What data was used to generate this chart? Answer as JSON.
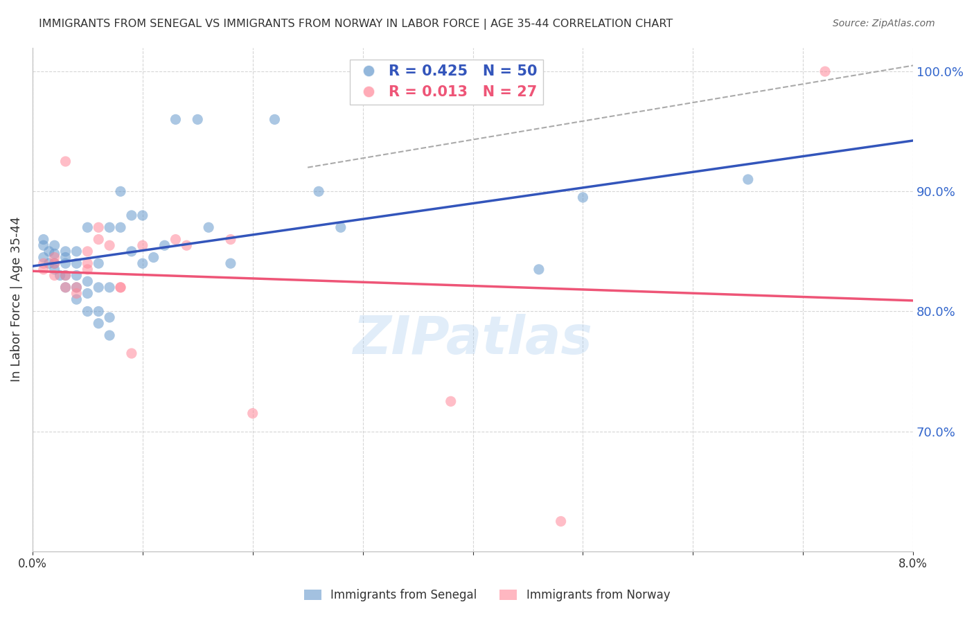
{
  "title": "IMMIGRANTS FROM SENEGAL VS IMMIGRANTS FROM NORWAY IN LABOR FORCE | AGE 35-44 CORRELATION CHART",
  "source": "Source: ZipAtlas.com",
  "ylabel": "In Labor Force | Age 35-44",
  "xmin": 0.0,
  "xmax": 0.08,
  "ymin": 0.6,
  "ymax": 1.02,
  "yticks": [
    0.7,
    0.8,
    0.9,
    1.0
  ],
  "ytick_labels": [
    "70.0%",
    "80.0%",
    "90.0%",
    "100.0%"
  ],
  "legend_R_blue": "R = 0.425",
  "legend_N_blue": "N = 50",
  "legend_R_pink": "R = 0.013",
  "legend_N_pink": "N = 27",
  "legend_label_blue": "Immigrants from Senegal",
  "legend_label_pink": "Immigrants from Norway",
  "blue_color": "#6699CC",
  "pink_color": "#FF8899",
  "trend_blue_color": "#3355BB",
  "trend_pink_color": "#EE5577",
  "blue_scatter_x": [
    0.001,
    0.001,
    0.001,
    0.0015,
    0.0015,
    0.002,
    0.002,
    0.002,
    0.002,
    0.0025,
    0.003,
    0.003,
    0.003,
    0.003,
    0.003,
    0.004,
    0.004,
    0.004,
    0.004,
    0.004,
    0.005,
    0.005,
    0.005,
    0.005,
    0.006,
    0.006,
    0.006,
    0.006,
    0.007,
    0.007,
    0.007,
    0.007,
    0.008,
    0.008,
    0.009,
    0.009,
    0.01,
    0.01,
    0.011,
    0.012,
    0.013,
    0.015,
    0.016,
    0.018,
    0.022,
    0.026,
    0.028,
    0.046,
    0.05,
    0.065
  ],
  "blue_scatter_y": [
    0.845,
    0.855,
    0.86,
    0.84,
    0.85,
    0.835,
    0.84,
    0.848,
    0.855,
    0.83,
    0.82,
    0.83,
    0.84,
    0.845,
    0.85,
    0.81,
    0.82,
    0.83,
    0.84,
    0.85,
    0.8,
    0.815,
    0.825,
    0.87,
    0.79,
    0.8,
    0.82,
    0.84,
    0.78,
    0.795,
    0.82,
    0.87,
    0.87,
    0.9,
    0.85,
    0.88,
    0.84,
    0.88,
    0.845,
    0.855,
    0.96,
    0.96,
    0.87,
    0.84,
    0.96,
    0.9,
    0.87,
    0.835,
    0.895,
    0.91
  ],
  "pink_scatter_x": [
    0.001,
    0.001,
    0.002,
    0.002,
    0.002,
    0.003,
    0.003,
    0.003,
    0.004,
    0.004,
    0.005,
    0.005,
    0.005,
    0.006,
    0.006,
    0.007,
    0.008,
    0.008,
    0.009,
    0.01,
    0.013,
    0.014,
    0.018,
    0.02,
    0.038,
    0.048,
    0.072
  ],
  "pink_scatter_y": [
    0.835,
    0.84,
    0.83,
    0.84,
    0.845,
    0.82,
    0.83,
    0.925,
    0.815,
    0.82,
    0.835,
    0.84,
    0.85,
    0.86,
    0.87,
    0.855,
    0.82,
    0.82,
    0.765,
    0.855,
    0.86,
    0.855,
    0.86,
    0.715,
    0.725,
    0.625,
    1.0
  ],
  "watermark": "ZIPatlas",
  "background_color": "#FFFFFF",
  "grid_color": "#CCCCCC",
  "axis_label_color": "#3366CC",
  "title_color": "#333333"
}
